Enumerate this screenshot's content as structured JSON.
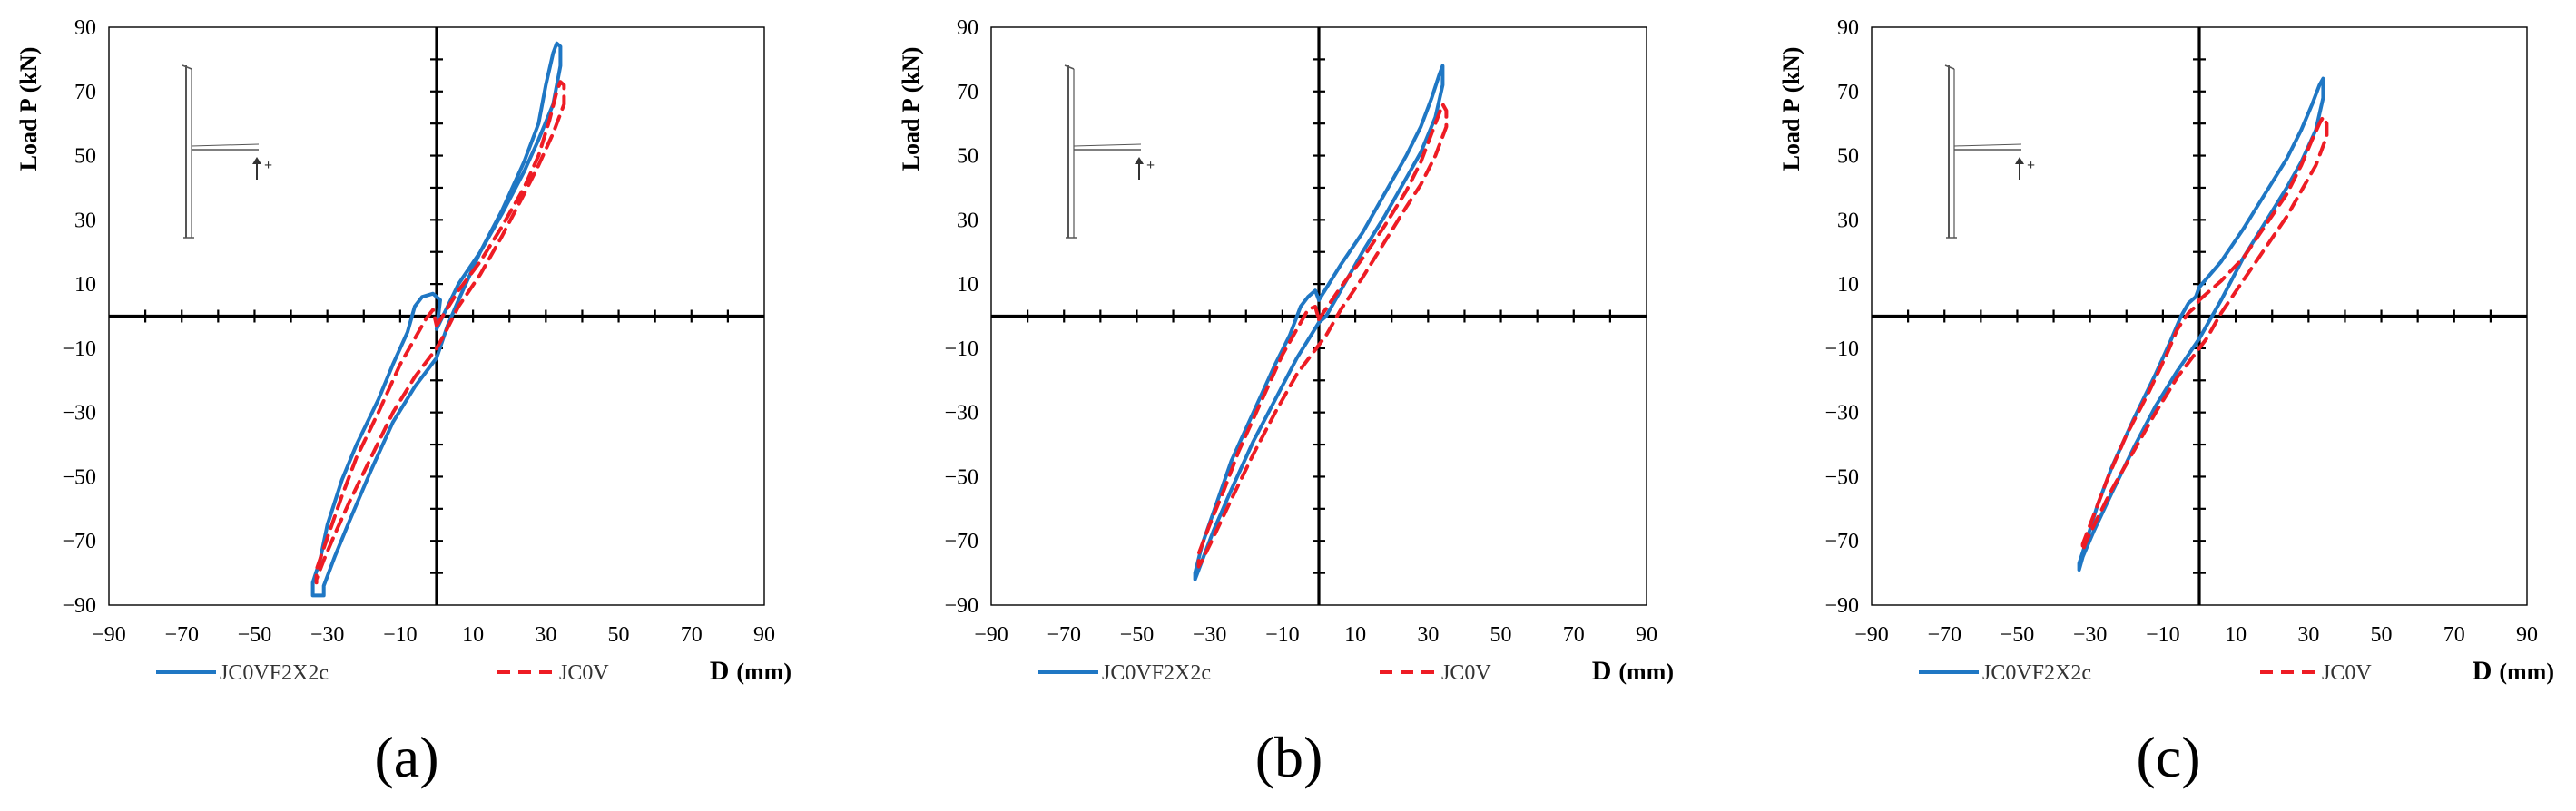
{
  "figure": {
    "shared": {
      "type": "line",
      "xlabel_bold": "D",
      "xlabel_unit": "(mm)",
      "ylabel_bold": "Load P",
      "ylabel_unit": "(kN)",
      "xlim": [
        -90,
        90
      ],
      "ylim": [
        -90,
        90
      ],
      "ticks": [
        -90,
        -70,
        -50,
        -30,
        -10,
        10,
        30,
        50,
        70,
        90
      ],
      "tick_labels": [
        "−90",
        "−70",
        "−50",
        "−30",
        "−10",
        "10",
        "30",
        "50",
        "70",
        "90"
      ],
      "inset_arrow_label": "+",
      "colors": {
        "blue": "#1f77c4",
        "red": "#ee1c24",
        "axis": "#000000"
      }
    },
    "chart_data": [
      {
        "panel": "(a)",
        "type": "line",
        "xlabel": "D (mm)",
        "ylabel": "Load P (kN)",
        "xlim": [
          -90,
          90
        ],
        "ylim": [
          -90,
          90
        ],
        "series": [
          {
            "name": "JC0VF2X2c",
            "style": "solid",
            "color": "#1f77c4",
            "points": [
              [
                0,
                -4
              ],
              [
                6,
                10
              ],
              [
                12,
                20
              ],
              [
                18,
                33
              ],
              [
                24,
                48
              ],
              [
                28,
                60
              ],
              [
                30,
                72
              ],
              [
                32,
                82
              ],
              [
                33,
                85
              ],
              [
                34,
                84
              ],
              [
                34,
                78
              ],
              [
                32,
                66
              ],
              [
                28,
                55
              ],
              [
                24,
                45
              ],
              [
                18,
                32
              ],
              [
                12,
                20
              ],
              [
                6,
                5
              ],
              [
                3,
                -3
              ],
              [
                0,
                -13
              ],
              [
                -6,
                -22
              ],
              [
                -12,
                -33
              ],
              [
                -18,
                -48
              ],
              [
                -24,
                -64
              ],
              [
                -28,
                -75
              ],
              [
                -31,
                -84
              ],
              [
                -31,
                -87
              ],
              [
                -34,
                -87
              ],
              [
                -34,
                -83
              ],
              [
                -32,
                -76
              ],
              [
                -30,
                -65
              ],
              [
                -26,
                -51
              ],
              [
                -22,
                -40
              ],
              [
                -16,
                -26
              ],
              [
                -12,
                -15
              ],
              [
                -8,
                -5
              ],
              [
                -6,
                3
              ],
              [
                -4,
                6
              ],
              [
                -1,
                7
              ],
              [
                1,
                5
              ],
              [
                0,
                -4
              ]
            ]
          },
          {
            "name": "JC0V",
            "style": "dashed",
            "color": "#ee1c24",
            "points": [
              [
                0,
                -3
              ],
              [
                6,
                8
              ],
              [
                12,
                17
              ],
              [
                18,
                28
              ],
              [
                24,
                40
              ],
              [
                28,
                50
              ],
              [
                31,
                61
              ],
              [
                33,
                70
              ],
              [
                34,
                73
              ],
              [
                35,
                72
              ],
              [
                35,
                66
              ],
              [
                32,
                57
              ],
              [
                28,
                47
              ],
              [
                24,
                38
              ],
              [
                18,
                25
              ],
              [
                12,
                13
              ],
              [
                6,
                3
              ],
              [
                2,
                -6
              ],
              [
                0,
                -10
              ],
              [
                -6,
                -19
              ],
              [
                -12,
                -30
              ],
              [
                -18,
                -44
              ],
              [
                -24,
                -58
              ],
              [
                -28,
                -68
              ],
              [
                -31,
                -76
              ],
              [
                -33,
                -82
              ],
              [
                -33,
                -83
              ],
              [
                -33,
                -79
              ],
              [
                -30,
                -69
              ],
              [
                -26,
                -56
              ],
              [
                -22,
                -44
              ],
              [
                -16,
                -30
              ],
              [
                -10,
                -15
              ],
              [
                -6,
                -7
              ],
              [
                -3,
                -1
              ],
              [
                -1,
                2
              ],
              [
                0,
                -3
              ]
            ]
          }
        ]
      },
      {
        "panel": "(b)",
        "type": "line",
        "xlabel": "D (mm)",
        "ylabel": "Load P (kN)",
        "xlim": [
          -90,
          90
        ],
        "ylim": [
          -90,
          90
        ],
        "series": [
          {
            "name": "JC0VF2X2c",
            "style": "solid",
            "color": "#1f77c4",
            "points": [
              [
                0,
                5
              ],
              [
                6,
                16
              ],
              [
                12,
                26
              ],
              [
                18,
                38
              ],
              [
                24,
                50
              ],
              [
                28,
                59
              ],
              [
                31,
                68
              ],
              [
                33,
                75
              ],
              [
                34,
                78
              ],
              [
                34,
                72
              ],
              [
                32,
                62
              ],
              [
                28,
                51
              ],
              [
                24,
                43
              ],
              [
                18,
                31
              ],
              [
                12,
                20
              ],
              [
                6,
                8
              ],
              [
                2,
                0
              ],
              [
                0,
                -2
              ],
              [
                -6,
                -13
              ],
              [
                -12,
                -26
              ],
              [
                -18,
                -39
              ],
              [
                -24,
                -54
              ],
              [
                -29,
                -67
              ],
              [
                -32,
                -76
              ],
              [
                -34,
                -82
              ],
              [
                -34,
                -80
              ],
              [
                -32,
                -71
              ],
              [
                -28,
                -58
              ],
              [
                -24,
                -45
              ],
              [
                -18,
                -30
              ],
              [
                -12,
                -15
              ],
              [
                -8,
                -6
              ],
              [
                -5,
                3
              ],
              [
                -3,
                6
              ],
              [
                -1,
                8
              ],
              [
                0,
                5
              ]
            ]
          },
          {
            "name": "JC0V",
            "style": "dashed",
            "color": "#ee1c24",
            "points": [
              [
                0,
                -1
              ],
              [
                6,
                9
              ],
              [
                12,
                18
              ],
              [
                18,
                28
              ],
              [
                24,
                39
              ],
              [
                28,
                48
              ],
              [
                31,
                57
              ],
              [
                33,
                63
              ],
              [
                34,
                66
              ],
              [
                35,
                64
              ],
              [
                35,
                59
              ],
              [
                32,
                50
              ],
              [
                28,
                41
              ],
              [
                24,
                34
              ],
              [
                18,
                23
              ],
              [
                12,
                12
              ],
              [
                6,
                2
              ],
              [
                2,
                -6
              ],
              [
                0,
                -9
              ],
              [
                -6,
                -18
              ],
              [
                -12,
                -30
              ],
              [
                -18,
                -43
              ],
              [
                -24,
                -57
              ],
              [
                -29,
                -69
              ],
              [
                -32,
                -76
              ],
              [
                -33,
                -78
              ],
              [
                -33,
                -74
              ],
              [
                -30,
                -65
              ],
              [
                -26,
                -54
              ],
              [
                -22,
                -42
              ],
              [
                -16,
                -27
              ],
              [
                -10,
                -12
              ],
              [
                -6,
                -4
              ],
              [
                -3,
                2
              ],
              [
                -1,
                3
              ],
              [
                0,
                -1
              ]
            ]
          }
        ]
      },
      {
        "panel": "(c)",
        "type": "line",
        "xlabel": "D (mm)",
        "ylabel": "Load P (kN)",
        "xlim": [
          -90,
          90
        ],
        "ylim": [
          -90,
          90
        ],
        "series": [
          {
            "name": "JC0VF2X2c",
            "style": "solid",
            "color": "#1f77c4",
            "points": [
              [
                0,
                9
              ],
              [
                6,
                17
              ],
              [
                12,
                27
              ],
              [
                18,
                38
              ],
              [
                24,
                49
              ],
              [
                28,
                58
              ],
              [
                31,
                66
              ],
              [
                33,
                72
              ],
              [
                34,
                74
              ],
              [
                34,
                68
              ],
              [
                32,
                58
              ],
              [
                28,
                48
              ],
              [
                24,
                40
              ],
              [
                18,
                29
              ],
              [
                12,
                18
              ],
              [
                6,
                5
              ],
              [
                2,
                -3
              ],
              [
                0,
                -7
              ],
              [
                -6,
                -17
              ],
              [
                -12,
                -28
              ],
              [
                -18,
                -41
              ],
              [
                -24,
                -55
              ],
              [
                -29,
                -67
              ],
              [
                -32,
                -75
              ],
              [
                -33,
                -79
              ],
              [
                -33,
                -77
              ],
              [
                -31,
                -70
              ],
              [
                -28,
                -59
              ],
              [
                -24,
                -47
              ],
              [
                -18,
                -32
              ],
              [
                -12,
                -18
              ],
              [
                -8,
                -8
              ],
              [
                -5,
                0
              ],
              [
                -3,
                4
              ],
              [
                -1,
                6
              ],
              [
                0,
                9
              ]
            ]
          },
          {
            "name": "JC0V",
            "style": "dashed",
            "color": "#ee1c24",
            "points": [
              [
                0,
                5
              ],
              [
                6,
                11
              ],
              [
                12,
                18
              ],
              [
                18,
                28
              ],
              [
                24,
                38
              ],
              [
                28,
                47
              ],
              [
                31,
                55
              ],
              [
                33,
                60
              ],
              [
                34,
                62
              ],
              [
                35,
                60
              ],
              [
                35,
                56
              ],
              [
                32,
                47
              ],
              [
                28,
                39
              ],
              [
                24,
                31
              ],
              [
                18,
                21
              ],
              [
                12,
                11
              ],
              [
                6,
                1
              ],
              [
                2,
                -7
              ],
              [
                0,
                -10
              ],
              [
                -6,
                -19
              ],
              [
                -12,
                -30
              ],
              [
                -18,
                -42
              ],
              [
                -24,
                -54
              ],
              [
                -28,
                -63
              ],
              [
                -31,
                -70
              ],
              [
                -32,
                -73
              ],
              [
                -32,
                -71
              ],
              [
                -29,
                -62
              ],
              [
                -25,
                -50
              ],
              [
                -20,
                -37
              ],
              [
                -14,
                -24
              ],
              [
                -9,
                -12
              ],
              [
                -6,
                -4
              ],
              [
                -3,
                1
              ],
              [
                -1,
                3
              ],
              [
                0,
                5
              ]
            ]
          }
        ]
      }
    ]
  }
}
